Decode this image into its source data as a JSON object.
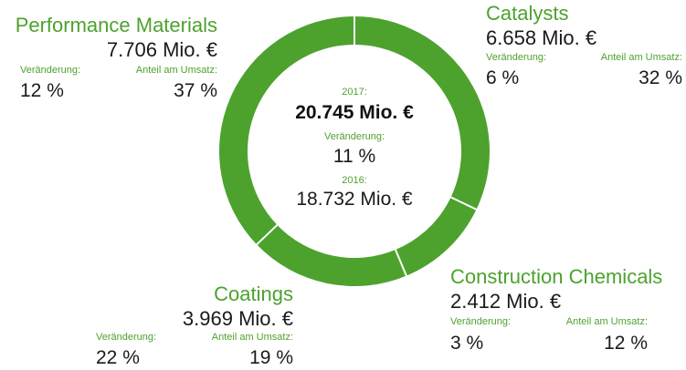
{
  "chart_data": {
    "type": "pie",
    "variant": "donut",
    "color": "#4da22e",
    "separator_color": "#ffffff",
    "center": {
      "year_2017_label": "2017:",
      "total_2017": "20.745 Mio. €",
      "change_label": "Veränderung:",
      "change_value": "11 %",
      "year_2016_label": "2016:",
      "total_2016": "18.732 Mio. €"
    },
    "segments": [
      {
        "name": "Catalysts",
        "value": 6658,
        "value_label": "6.658 Mio. €",
        "change_label": "Veränderung:",
        "change": "6 %",
        "share_label": "Anteil am Umsatz:",
        "share": "32 %"
      },
      {
        "name": "Construction Chemicals",
        "value": 2412,
        "value_label": "2.412 Mio. €",
        "change_label": "Veränderung:",
        "change": "3 %",
        "share_label": "Anteil am Umsatz:",
        "share": "12 %"
      },
      {
        "name": "Coatings",
        "value": 3969,
        "value_label": "3.969 Mio. €",
        "change_label": "Veränderung:",
        "change": "22 %",
        "share_label": "Anteil am Umsatz:",
        "share": "19 %"
      },
      {
        "name": "Performance Materials",
        "value": 7706,
        "value_label": "7.706 Mio. €",
        "change_label": "Veränderung:",
        "change": "12 %",
        "share_label": "Anteil am Umsatz:",
        "share": "37 %"
      }
    ]
  }
}
